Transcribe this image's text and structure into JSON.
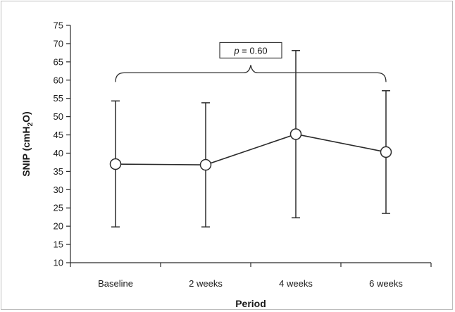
{
  "chart_data": {
    "type": "line",
    "categories": [
      "Baseline",
      "2 weeks",
      "4 weeks",
      "6 weeks"
    ],
    "series": [
      {
        "values": [
          37,
          36.8,
          45.2,
          40.3
        ],
        "error_upper": [
          54.3,
          53.8,
          68.1,
          57.1
        ],
        "error_lower": [
          19.8,
          19.8,
          22.3,
          23.5
        ]
      }
    ],
    "title": "",
    "xlabel": "Period",
    "ylabel_parts": {
      "pre": "SNIP (cmH",
      "sub": "2",
      "post": "O)"
    },
    "ylim": [
      10,
      75
    ],
    "yticks": [
      10,
      15,
      20,
      25,
      30,
      35,
      40,
      45,
      50,
      55,
      60,
      65,
      70,
      75
    ],
    "grid": false,
    "legend": "none",
    "annotation": {
      "p_symbol": "p",
      "p_text": " = 0.60",
      "bracket_from": "Baseline",
      "bracket_to": "6 weeks",
      "bracket_level": 62
    },
    "colors": {
      "line": "#2b2b2b",
      "marker_fill": "#ffffff",
      "axis": "#2b2b2b"
    }
  }
}
